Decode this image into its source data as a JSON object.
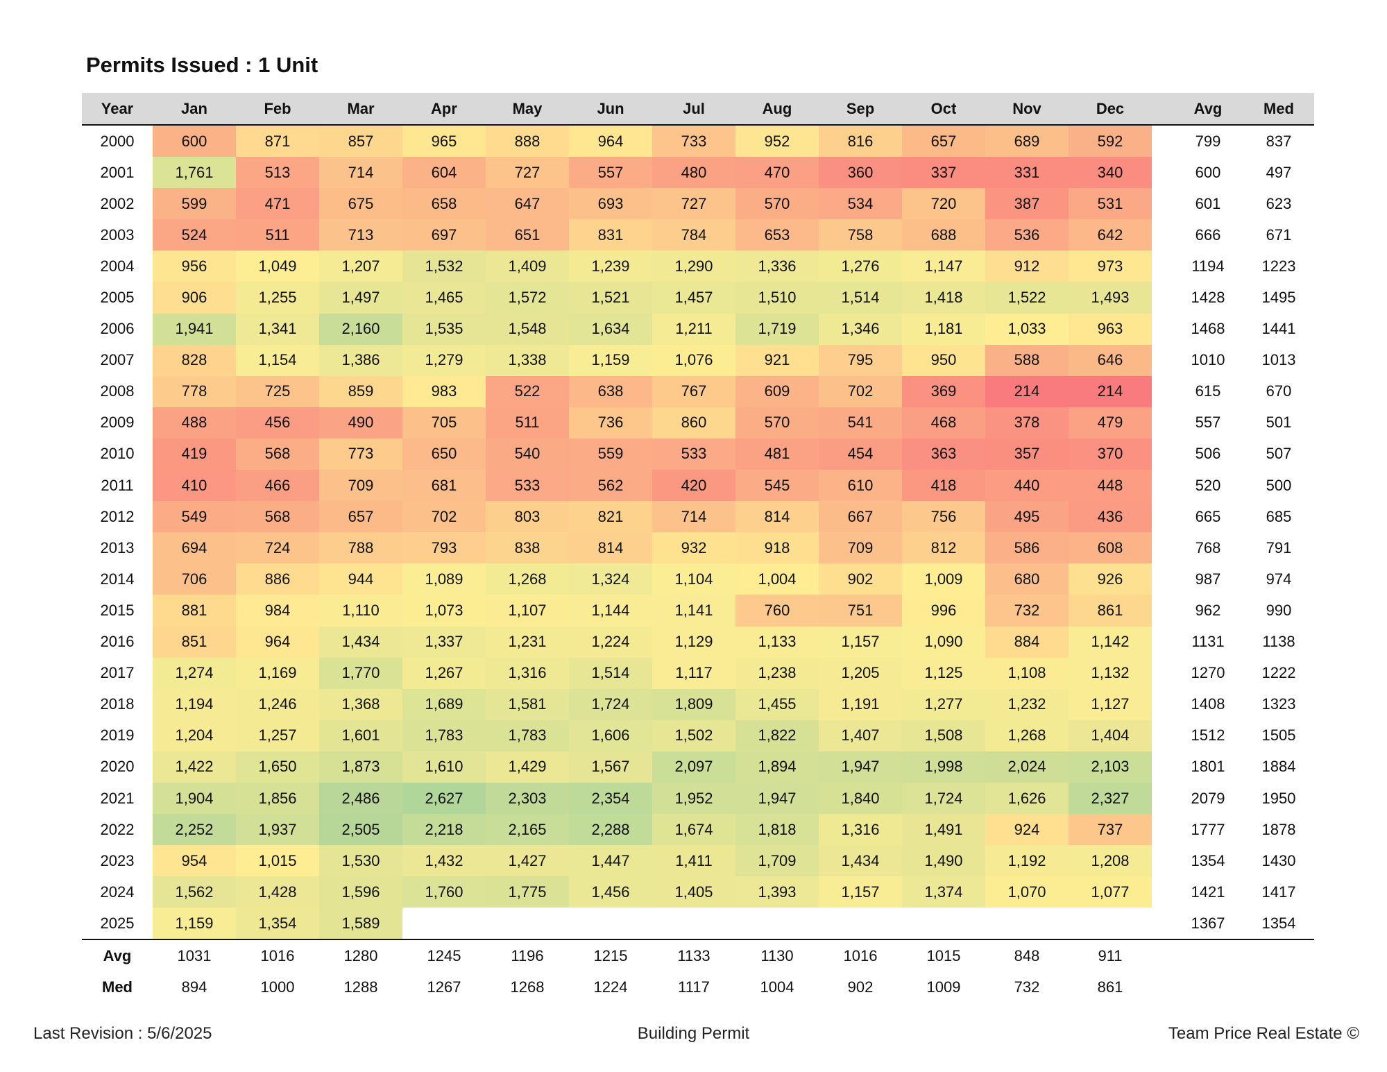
{
  "title": "Permits Issued : 1 Unit",
  "headers": {
    "year": "Year",
    "months": [
      "Jan",
      "Feb",
      "Mar",
      "Apr",
      "May",
      "Jun",
      "Jul",
      "Aug",
      "Sep",
      "Oct",
      "Nov",
      "Dec"
    ],
    "avg": "Avg",
    "med": "Med"
  },
  "rows": [
    {
      "year": "2000",
      "values": [
        "600",
        "871",
        "857",
        "965",
        "888",
        "964",
        "733",
        "952",
        "816",
        "657",
        "689",
        "592"
      ],
      "avg": "799",
      "med": "837"
    },
    {
      "year": "2001",
      "values": [
        "1,761",
        "513",
        "714",
        "604",
        "727",
        "557",
        "480",
        "470",
        "360",
        "337",
        "331",
        "340"
      ],
      "avg": "600",
      "med": "497"
    },
    {
      "year": "2002",
      "values": [
        "599",
        "471",
        "675",
        "658",
        "647",
        "693",
        "727",
        "570",
        "534",
        "720",
        "387",
        "531"
      ],
      "avg": "601",
      "med": "623"
    },
    {
      "year": "2003",
      "values": [
        "524",
        "511",
        "713",
        "697",
        "651",
        "831",
        "784",
        "653",
        "758",
        "688",
        "536",
        "642"
      ],
      "avg": "666",
      "med": "671"
    },
    {
      "year": "2004",
      "values": [
        "956",
        "1,049",
        "1,207",
        "1,532",
        "1,409",
        "1,239",
        "1,290",
        "1,336",
        "1,276",
        "1,147",
        "912",
        "973"
      ],
      "avg": "1194",
      "med": "1223"
    },
    {
      "year": "2005",
      "values": [
        "906",
        "1,255",
        "1,497",
        "1,465",
        "1,572",
        "1,521",
        "1,457",
        "1,510",
        "1,514",
        "1,418",
        "1,522",
        "1,493"
      ],
      "avg": "1428",
      "med": "1495"
    },
    {
      "year": "2006",
      "values": [
        "1,941",
        "1,341",
        "2,160",
        "1,535",
        "1,548",
        "1,634",
        "1,211",
        "1,719",
        "1,346",
        "1,181",
        "1,033",
        "963"
      ],
      "avg": "1468",
      "med": "1441"
    },
    {
      "year": "2007",
      "values": [
        "828",
        "1,154",
        "1,386",
        "1,279",
        "1,338",
        "1,159",
        "1,076",
        "921",
        "795",
        "950",
        "588",
        "646"
      ],
      "avg": "1010",
      "med": "1013"
    },
    {
      "year": "2008",
      "values": [
        "778",
        "725",
        "859",
        "983",
        "522",
        "638",
        "767",
        "609",
        "702",
        "369",
        "214",
        "214"
      ],
      "avg": "615",
      "med": "670"
    },
    {
      "year": "2009",
      "values": [
        "488",
        "456",
        "490",
        "705",
        "511",
        "736",
        "860",
        "570",
        "541",
        "468",
        "378",
        "479"
      ],
      "avg": "557",
      "med": "501"
    },
    {
      "year": "2010",
      "values": [
        "419",
        "568",
        "773",
        "650",
        "540",
        "559",
        "533",
        "481",
        "454",
        "363",
        "357",
        "370"
      ],
      "avg": "506",
      "med": "507"
    },
    {
      "year": "2011",
      "values": [
        "410",
        "466",
        "709",
        "681",
        "533",
        "562",
        "420",
        "545",
        "610",
        "418",
        "440",
        "448"
      ],
      "avg": "520",
      "med": "500"
    },
    {
      "year": "2012",
      "values": [
        "549",
        "568",
        "657",
        "702",
        "803",
        "821",
        "714",
        "814",
        "667",
        "756",
        "495",
        "436"
      ],
      "avg": "665",
      "med": "685"
    },
    {
      "year": "2013",
      "values": [
        "694",
        "724",
        "788",
        "793",
        "838",
        "814",
        "932",
        "918",
        "709",
        "812",
        "586",
        "608"
      ],
      "avg": "768",
      "med": "791"
    },
    {
      "year": "2014",
      "values": [
        "706",
        "886",
        "944",
        "1,089",
        "1,268",
        "1,324",
        "1,104",
        "1,004",
        "902",
        "1,009",
        "680",
        "926"
      ],
      "avg": "987",
      "med": "974"
    },
    {
      "year": "2015",
      "values": [
        "881",
        "984",
        "1,110",
        "1,073",
        "1,107",
        "1,144",
        "1,141",
        "760",
        "751",
        "996",
        "732",
        "861"
      ],
      "avg": "962",
      "med": "990"
    },
    {
      "year": "2016",
      "values": [
        "851",
        "964",
        "1,434",
        "1,337",
        "1,231",
        "1,224",
        "1,129",
        "1,133",
        "1,157",
        "1,090",
        "884",
        "1,142"
      ],
      "avg": "1131",
      "med": "1138"
    },
    {
      "year": "2017",
      "values": [
        "1,274",
        "1,169",
        "1,770",
        "1,267",
        "1,316",
        "1,514",
        "1,117",
        "1,238",
        "1,205",
        "1,125",
        "1,108",
        "1,132"
      ],
      "avg": "1270",
      "med": "1222"
    },
    {
      "year": "2018",
      "values": [
        "1,194",
        "1,246",
        "1,368",
        "1,689",
        "1,581",
        "1,724",
        "1,809",
        "1,455",
        "1,191",
        "1,277",
        "1,232",
        "1,127"
      ],
      "avg": "1408",
      "med": "1323"
    },
    {
      "year": "2019",
      "values": [
        "1,204",
        "1,257",
        "1,601",
        "1,783",
        "1,783",
        "1,606",
        "1,502",
        "1,822",
        "1,407",
        "1,508",
        "1,268",
        "1,404"
      ],
      "avg": "1512",
      "med": "1505"
    },
    {
      "year": "2020",
      "values": [
        "1,422",
        "1,650",
        "1,873",
        "1,610",
        "1,429",
        "1,567",
        "2,097",
        "1,894",
        "1,947",
        "1,998",
        "2,024",
        "2,103"
      ],
      "avg": "1801",
      "med": "1884"
    },
    {
      "year": "2021",
      "values": [
        "1,904",
        "1,856",
        "2,486",
        "2,627",
        "2,303",
        "2,354",
        "1,952",
        "1,947",
        "1,840",
        "1,724",
        "1,626",
        "2,327"
      ],
      "avg": "2079",
      "med": "1950"
    },
    {
      "year": "2022",
      "values": [
        "2,252",
        "1,937",
        "2,505",
        "2,218",
        "2,165",
        "2,288",
        "1,674",
        "1,818",
        "1,316",
        "1,491",
        "924",
        "737"
      ],
      "avg": "1777",
      "med": "1878"
    },
    {
      "year": "2023",
      "values": [
        "954",
        "1,015",
        "1,530",
        "1,432",
        "1,427",
        "1,447",
        "1,411",
        "1,709",
        "1,434",
        "1,490",
        "1,192",
        "1,208"
      ],
      "avg": "1354",
      "med": "1430"
    },
    {
      "year": "2024",
      "values": [
        "1,562",
        "1,428",
        "1,596",
        "1,760",
        "1,775",
        "1,456",
        "1,405",
        "1,393",
        "1,157",
        "1,374",
        "1,070",
        "1,077"
      ],
      "avg": "1421",
      "med": "1417"
    },
    {
      "year": "2025",
      "values": [
        "1,159",
        "1,354",
        "1,589",
        "",
        "",
        "",
        "",
        "",
        "",
        "",
        "",
        ""
      ],
      "avg": "1367",
      "med": "1354"
    }
  ],
  "summary": [
    {
      "label": "Avg",
      "values": [
        "1031",
        "1016",
        "1280",
        "1245",
        "1196",
        "1215",
        "1133",
        "1130",
        "1016",
        "1015",
        "848",
        "911"
      ]
    },
    {
      "label": "Med",
      "values": [
        "894",
        "1000",
        "1288",
        "1267",
        "1268",
        "1224",
        "1117",
        "1004",
        "902",
        "1009",
        "732",
        "861"
      ]
    }
  ],
  "heatmap_colors": {
    "low": "#f8696b",
    "mid": "#ffeb84",
    "high": "#a6d08c"
  },
  "footer": {
    "left": "Last Revision : 5/6/2025",
    "center": "Building Permit",
    "right": "Team Price Real Estate ©"
  }
}
